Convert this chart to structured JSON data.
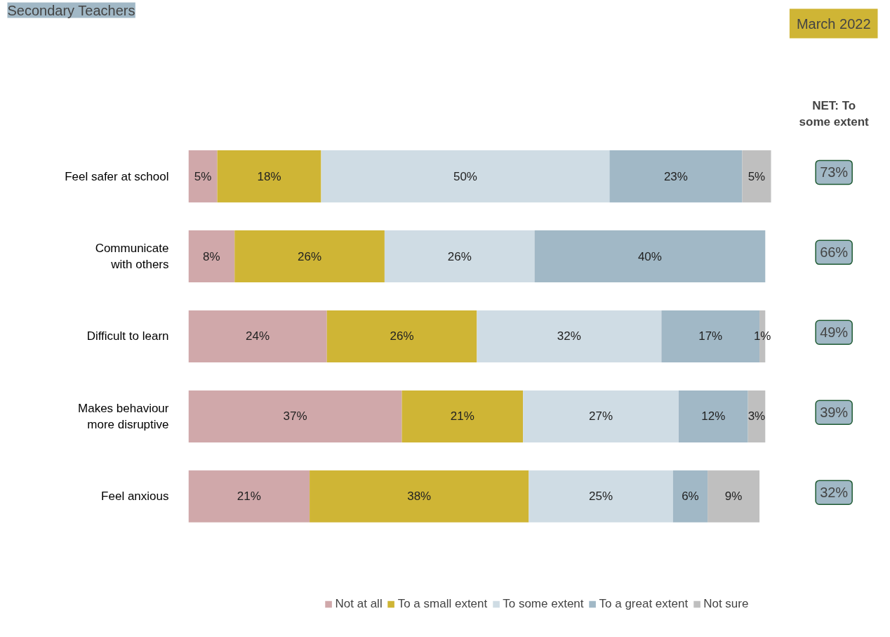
{
  "chart_data": {
    "type": "bar",
    "orientation": "horizontal",
    "stacked": true,
    "title": "Secondary Teachers",
    "subtitle": "March 2022",
    "categories": [
      "Feel safer at school",
      "Communicate with others",
      "Difficult to learn",
      "Makes behaviour more disruptive",
      "Feel anxious"
    ],
    "series": [
      {
        "name": "Not at all",
        "color": "#d0a8aa",
        "values": [
          5,
          8,
          24,
          37,
          21
        ],
        "value_labels": [
          "5%",
          "8%",
          "24%",
          "37%",
          "21%"
        ]
      },
      {
        "name": "To a small extent",
        "color": "#cfb535",
        "values": [
          18,
          26,
          26,
          21,
          38
        ],
        "value_labels": [
          "18%",
          "26%",
          "26%",
          "21%",
          "38%"
        ]
      },
      {
        "name": "To some extent",
        "color": "#cfdce4",
        "values": [
          50,
          26,
          32,
          27,
          25
        ],
        "value_labels": [
          "50%",
          "26%",
          "32%",
          "27%",
          "25%"
        ]
      },
      {
        "name": "To a great extent",
        "color": "#a1b8c6",
        "values": [
          23,
          40,
          17,
          12,
          6
        ],
        "value_labels": [
          "23%",
          "40%",
          "17%",
          "12%",
          "6%"
        ]
      },
      {
        "name": "Not sure",
        "color": "#bfbfbf",
        "values": [
          5,
          0,
          1,
          3,
          9
        ],
        "value_labels": [
          "5%",
          null,
          "1%",
          "3%",
          "9%"
        ]
      }
    ],
    "legend": "bottom",
    "grid": false,
    "tick_labels": "y",
    "annotations": [
      "NET: To some extent",
      "73%",
      "66%",
      "49%",
      "39%",
      "32%"
    ]
  }
}
